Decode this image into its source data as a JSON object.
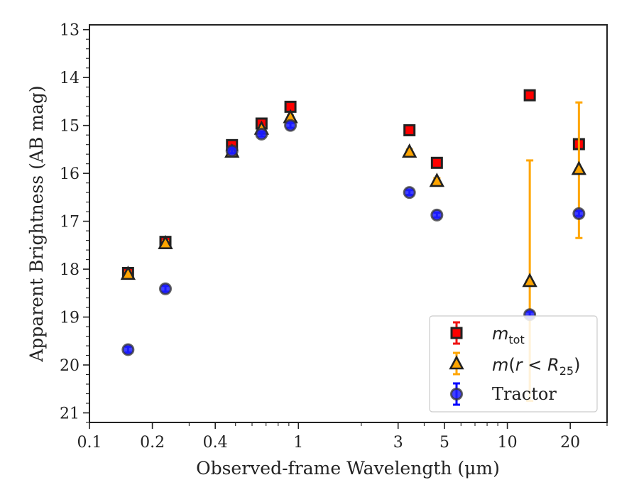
{
  "chart_data": {
    "type": "scatter",
    "title": "",
    "xlabel": "Observed-frame Wavelength (μm)",
    "ylabel": "Apparent Brightness (AB mag)",
    "xscale": "log",
    "xlim": [
      0.1,
      30
    ],
    "ylim": [
      21.2,
      12.9
    ],
    "y_inverted": true,
    "x_ticks": [
      {
        "value": 0.1,
        "label": "0.1"
      },
      {
        "value": 0.2,
        "label": "0.2"
      },
      {
        "value": 0.4,
        "label": "0.4"
      },
      {
        "value": 1,
        "label": "1"
      },
      {
        "value": 3,
        "label": "3"
      },
      {
        "value": 5,
        "label": "5"
      },
      {
        "value": 10,
        "label": "10"
      },
      {
        "value": 20,
        "label": "20"
      }
    ],
    "y_ticks": [
      13,
      14,
      15,
      16,
      17,
      18,
      19,
      20,
      21
    ],
    "grid": false,
    "legend_position": "bottom-right",
    "series": [
      {
        "name": "m_tot",
        "marker": "square",
        "color": "#ff0000",
        "edge_color": "#222222",
        "error_color": "#ee1111",
        "points": [
          {
            "x": 0.153,
            "y": 18.08,
            "err": 0.06
          },
          {
            "x": 0.231,
            "y": 17.43,
            "err": 0.05
          },
          {
            "x": 0.481,
            "y": 15.41,
            "err": 0.04
          },
          {
            "x": 0.666,
            "y": 14.96,
            "err": 0.04
          },
          {
            "x": 0.916,
            "y": 14.61,
            "err": 0.05
          },
          {
            "x": 3.4,
            "y": 15.1,
            "err": 0.04
          },
          {
            "x": 4.6,
            "y": 15.78,
            "err": 0.04
          },
          {
            "x": 12.8,
            "y": 14.37,
            "err": 0.04
          },
          {
            "x": 22.0,
            "y": 15.39,
            "err": 0.04
          }
        ]
      },
      {
        "name": "m(r < R25)",
        "marker": "triangle",
        "color": "#ffa500",
        "edge_color": "#222222",
        "error_color": "#ffa500",
        "points": [
          {
            "x": 0.153,
            "y": 18.1,
            "err": 0.05
          },
          {
            "x": 0.231,
            "y": 17.46,
            "err": 0.05
          },
          {
            "x": 0.481,
            "y": 15.55,
            "err": 0.04
          },
          {
            "x": 0.666,
            "y": 15.07,
            "err": 0.04
          },
          {
            "x": 0.916,
            "y": 14.83,
            "err": 0.04
          },
          {
            "x": 3.4,
            "y": 15.55,
            "err": 0.05
          },
          {
            "x": 4.6,
            "y": 16.16,
            "err": 0.06
          },
          {
            "x": 12.8,
            "y": 18.25,
            "lo": 15.73,
            "hi": 20.75
          },
          {
            "x": 22.0,
            "y": 15.91,
            "lo": 14.52,
            "hi": 17.35
          }
        ]
      },
      {
        "name": "Tractor",
        "marker": "circle",
        "color": "#1f1fff",
        "edge_color": "#333333",
        "error_color": "#0000ff",
        "points": [
          {
            "x": 0.153,
            "y": 19.68,
            "err": 0.06
          },
          {
            "x": 0.231,
            "y": 18.41,
            "err": 0.06
          },
          {
            "x": 0.481,
            "y": 15.53,
            "err": 0.05
          },
          {
            "x": 0.666,
            "y": 15.18,
            "err": 0.05
          },
          {
            "x": 0.916,
            "y": 15.0,
            "err": 0.05
          },
          {
            "x": 3.4,
            "y": 16.4,
            "err": 0.05
          },
          {
            "x": 4.6,
            "y": 16.87,
            "err": 0.05
          },
          {
            "x": 12.8,
            "y": 18.95,
            "err": 0.06
          },
          {
            "x": 22.0,
            "y": 16.84,
            "err": 0.05
          }
        ]
      }
    ]
  }
}
